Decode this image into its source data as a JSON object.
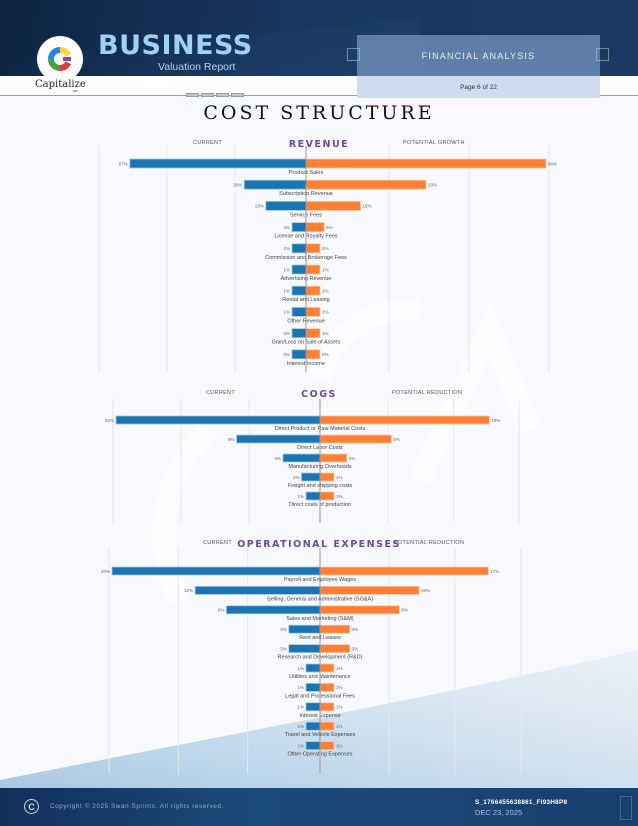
{
  "header": {
    "brand_title": "BUSINESS",
    "brand_subtitle": "Valuation Report",
    "logo_text": "Capitalize",
    "logo_subtext": "BIZ",
    "section_label": "FINANCIAL ANALYSIS",
    "page_indicator": "Page 6 of 22"
  },
  "page_title": "COST  STRUCTURE",
  "colors": {
    "current": "#1a75b0",
    "potential": "#ff8035",
    "section_title": "#6c4a9a"
  },
  "chart_data": [
    {
      "type": "bar",
      "orientation": "horizontal-diverging",
      "title": "REVENUE",
      "left_label": "CURRENT",
      "right_label": "POTENTIAL GROWTH",
      "categories": [
        "Product Sales",
        "Subscription Revenue",
        "Service Fees",
        "License and Royalty Fees",
        "Commission and Brokerage Fees",
        "Advertising Revenue",
        "Rental and Leasing",
        "Other Revenue",
        "Gain/Loss on Sale of Assets",
        "Interest Income"
      ],
      "series": [
        {
          "name": "Current",
          "values": [
            57,
            20,
            13,
            4,
            2,
            1,
            1,
            1,
            0,
            0
          ],
          "labels": [
            "57%",
            "20%",
            "13%",
            "4%",
            "2%",
            "1%",
            "1%",
            "1%",
            "0%",
            "0%"
          ]
        },
        {
          "name": "Potential Growth",
          "values": [
            66,
            33,
            15,
            5,
            2,
            1,
            1,
            1,
            1,
            0
          ],
          "labels": [
            "66%",
            "33%",
            "15%",
            "5%",
            "2%",
            "1%",
            "1%",
            "1%",
            "1%",
            "0%"
          ]
        }
      ]
    },
    {
      "type": "bar",
      "orientation": "horizontal-diverging",
      "title": "COGS",
      "left_label": "CURRENT",
      "right_label": "POTENTIAL REDUCTION",
      "categories": [
        "Direct Product or Raw Material Costs",
        "Direct Labor Costs",
        "Manufacturing Overheads",
        "Freight and shipping costs",
        "Direct costs of production"
      ],
      "series": [
        {
          "name": "Current",
          "values": [
            22,
            9,
            4,
            2,
            1
          ],
          "labels": [
            "22%",
            "9%",
            "4%",
            "2%",
            "1%"
          ]
        },
        {
          "name": "Potential Reduction",
          "values": [
            19,
            8,
            3,
            1,
            1
          ],
          "labels": [
            "19%",
            "8%",
            "3%",
            "1%",
            "1%"
          ]
        }
      ]
    },
    {
      "type": "bar",
      "orientation": "horizontal-diverging",
      "title": "OPERATIONAL EXPENSES",
      "left_label": "CURRENT",
      "right_label": "POTENTIAL REDUCTION",
      "categories": [
        "Payroll and Employee Wages",
        "Selling, General and Administrative (SG&A)",
        "Sales and Marketing (S&M)",
        "Rent and Leases",
        "Research and Development (R&D)",
        "Utilities and Maintenance",
        "Legal and Professional Fees",
        "Interest Expense",
        "Travel and Vehicle Expenses",
        "Other Operating Expenses"
      ],
      "series": [
        {
          "name": "Current",
          "values": [
            20,
            12,
            9,
            3,
            3,
            1,
            1,
            1,
            1,
            1
          ],
          "labels": [
            "20%",
            "12%",
            "9%",
            "3%",
            "3%",
            "1%",
            "1%",
            "1%",
            "1%",
            "1%"
          ]
        },
        {
          "name": "Potential Reduction",
          "values": [
            17,
            10,
            8,
            3,
            3,
            1,
            1,
            1,
            1,
            1
          ],
          "labels": [
            "17%",
            "10%",
            "8%",
            "3%",
            "3%",
            "1%",
            "1%",
            "1%",
            "1%",
            "1%"
          ]
        }
      ]
    }
  ],
  "footer": {
    "copyright": "Copyright © 2025 Swan Sprints. All rights reserved.",
    "doc_id": "S_1766455638861_FI93H8P8",
    "date": "DEC 23, 2025"
  }
}
